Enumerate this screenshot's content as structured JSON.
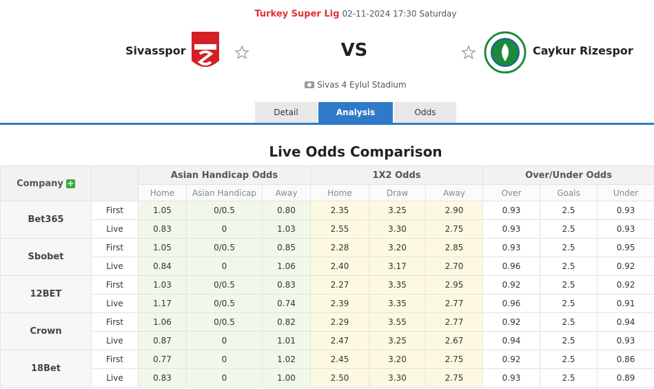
{
  "header": {
    "league": "Turkey Super Lig",
    "datetime": "02-11-2024 17:30 Saturday",
    "home_team": "Sivasspor",
    "vs": "VS",
    "away_team": "Caykur Rizespor",
    "stadium": "Sivas 4 Eylul Stadium"
  },
  "tabs": [
    "Detail",
    "Analysis",
    "Odds"
  ],
  "title": "Live Odds Comparison",
  "table": {
    "company_header": "Company",
    "groups": [
      "Asian Handicap Odds",
      "1X2 Odds",
      "Over/Under Odds"
    ],
    "subheaders": [
      "Home",
      "Asian Handicap",
      "Away",
      "Home",
      "Draw",
      "Away",
      "Over",
      "Goals",
      "Under"
    ],
    "companies": [
      {
        "name": "Bet365",
        "rows": [
          {
            "label": "First",
            "cells": [
              "1.05",
              "0/0.5",
              "0.80",
              "2.35",
              "3.25",
              "2.90",
              "0.93",
              "2.5",
              "0.93"
            ]
          },
          {
            "label": "Live",
            "cells": [
              "0.83",
              "0",
              "1.03",
              "2.55",
              "3.30",
              "2.75",
              "0.93",
              "2.5",
              "0.93"
            ]
          }
        ]
      },
      {
        "name": "Sbobet",
        "rows": [
          {
            "label": "First",
            "cells": [
              "1.05",
              "0/0.5",
              "0.85",
              "2.28",
              "3.20",
              "2.85",
              "0.93",
              "2.5",
              "0.95"
            ]
          },
          {
            "label": "Live",
            "cells": [
              "0.84",
              "0",
              "1.06",
              "2.40",
              "3.17",
              "2.70",
              "0.96",
              "2.5",
              "0.92"
            ]
          }
        ]
      },
      {
        "name": "12BET",
        "rows": [
          {
            "label": "First",
            "cells": [
              "1.03",
              "0/0.5",
              "0.83",
              "2.27",
              "3.35",
              "2.95",
              "0.92",
              "2.5",
              "0.92"
            ]
          },
          {
            "label": "Live",
            "cells": [
              "1.17",
              "0/0.5",
              "0.74",
              "2.39",
              "3.35",
              "2.77",
              "0.96",
              "2.5",
              "0.91"
            ]
          }
        ]
      },
      {
        "name": "Crown",
        "rows": [
          {
            "label": "First",
            "cells": [
              "1.06",
              "0/0.5",
              "0.82",
              "2.29",
              "3.55",
              "2.77",
              "0.92",
              "2.5",
              "0.94"
            ]
          },
          {
            "label": "Live",
            "cells": [
              "0.87",
              "0",
              "1.01",
              "2.47",
              "3.25",
              "2.67",
              "0.94",
              "2.5",
              "0.93"
            ]
          }
        ]
      },
      {
        "name": "18Bet",
        "rows": [
          {
            "label": "First",
            "cells": [
              "0.77",
              "0",
              "1.02",
              "2.45",
              "3.20",
              "2.75",
              "0.92",
              "2.5",
              "0.86"
            ]
          },
          {
            "label": "Live",
            "cells": [
              "0.83",
              "0",
              "1.00",
              "2.50",
              "3.30",
              "2.75",
              "0.93",
              "2.5",
              "0.89"
            ]
          }
        ]
      }
    ]
  }
}
